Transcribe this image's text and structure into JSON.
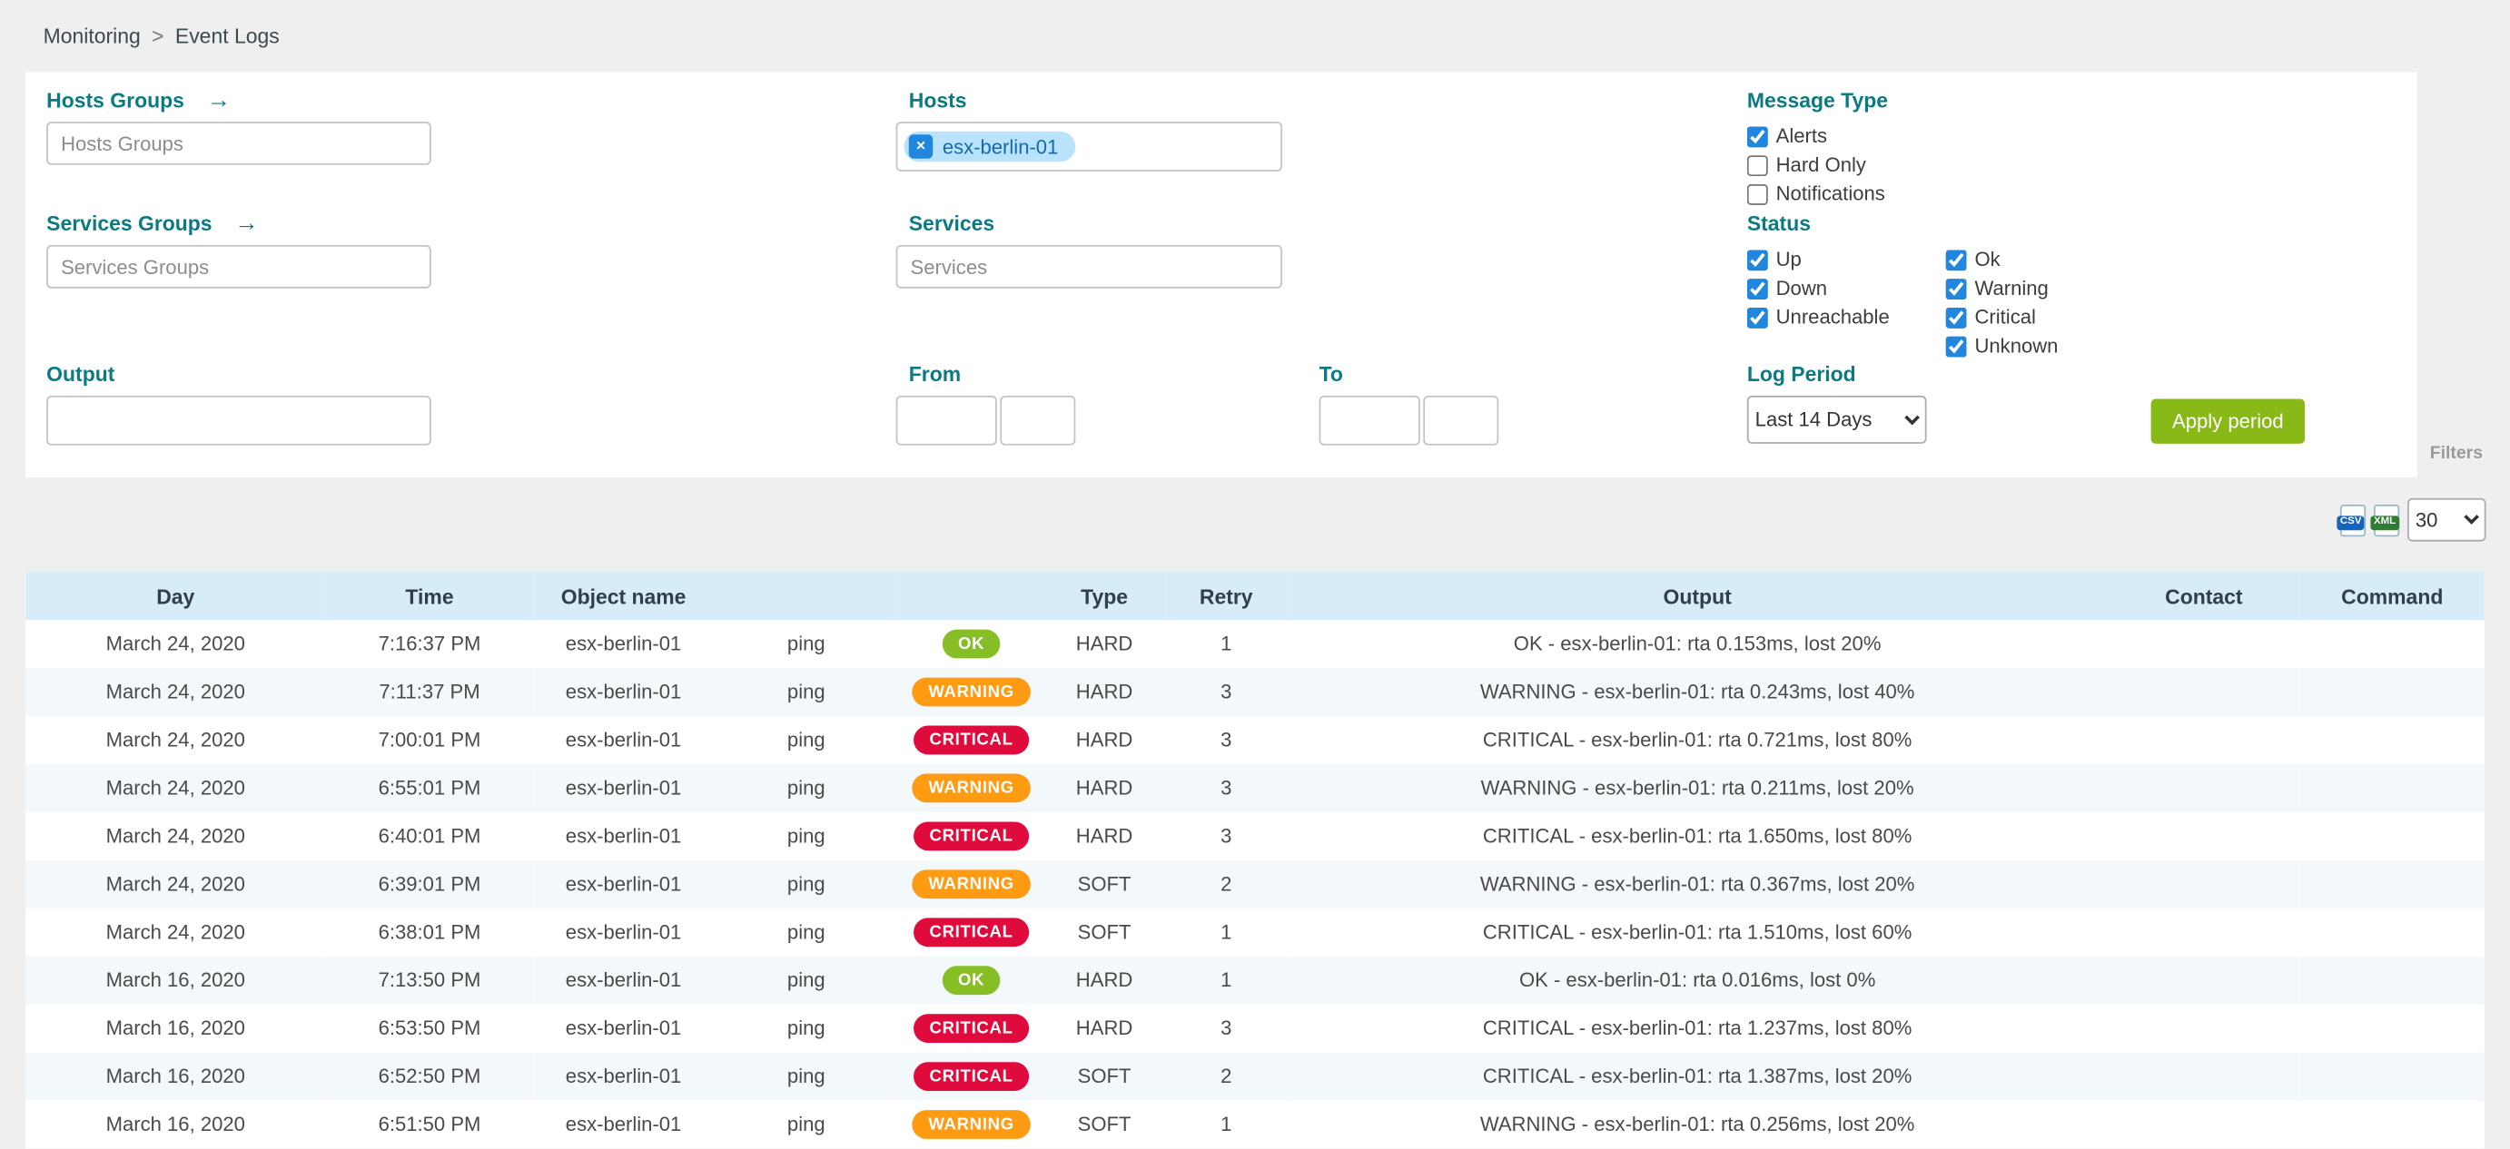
{
  "breadcrumb": {
    "items": [
      "Monitoring",
      "Event Logs"
    ],
    "separator": ">"
  },
  "filters": {
    "hosts_groups": {
      "label": "Hosts Groups",
      "placeholder": "Hosts Groups"
    },
    "hosts": {
      "label": "Hosts",
      "chip": "esx-berlin-01",
      "remove_icon": "×"
    },
    "services_groups": {
      "label": "Services Groups",
      "placeholder": "Services Groups"
    },
    "services": {
      "label": "Services",
      "placeholder": "Services"
    },
    "output": {
      "label": "Output",
      "value": ""
    },
    "from": {
      "label": "From",
      "date_value": "",
      "time_value": ""
    },
    "to": {
      "label": "To",
      "date_value": "",
      "time_value": ""
    },
    "message_type": {
      "label": "Message Type",
      "options": [
        {
          "label": "Alerts",
          "checked": true
        },
        {
          "label": "Hard Only",
          "checked": false
        },
        {
          "label": "Notifications",
          "checked": false
        }
      ]
    },
    "status": {
      "label": "Status",
      "columns": [
        [
          {
            "label": "Up",
            "checked": true
          },
          {
            "label": "Down",
            "checked": true
          },
          {
            "label": "Unreachable",
            "checked": true
          }
        ],
        [
          {
            "label": "Ok",
            "checked": true
          },
          {
            "label": "Warning",
            "checked": true
          },
          {
            "label": "Critical",
            "checked": true
          },
          {
            "label": "Unknown",
            "checked": true
          }
        ]
      ]
    },
    "log_period": {
      "label": "Log Period",
      "value": "Last 14 Days"
    },
    "apply_button_label": "Apply period",
    "toggle_label": "Filters",
    "arrow_icon": "→"
  },
  "toolbar": {
    "csv_label": "CSV",
    "xml_label": "XML",
    "page_size": "30"
  },
  "table": {
    "headers": [
      "Day",
      "Time",
      "Object name",
      "",
      "",
      "Type",
      "Retry",
      "Output",
      "Contact",
      "Command"
    ],
    "rows": [
      {
        "day": "March 24, 2020",
        "time": "7:16:37 PM",
        "object": "esx-berlin-01",
        "service": "ping",
        "status": "OK",
        "type": "HARD",
        "retry": "1",
        "output": "OK - esx-berlin-01: rta 0.153ms, lost 20%",
        "contact": "",
        "command": ""
      },
      {
        "day": "March 24, 2020",
        "time": "7:11:37 PM",
        "object": "esx-berlin-01",
        "service": "ping",
        "status": "WARNING",
        "type": "HARD",
        "retry": "3",
        "output": "WARNING - esx-berlin-01: rta 0.243ms, lost 40%",
        "contact": "",
        "command": ""
      },
      {
        "day": "March 24, 2020",
        "time": "7:00:01 PM",
        "object": "esx-berlin-01",
        "service": "ping",
        "status": "CRITICAL",
        "type": "HARD",
        "retry": "3",
        "output": "CRITICAL - esx-berlin-01: rta 0.721ms, lost 80%",
        "contact": "",
        "command": ""
      },
      {
        "day": "March 24, 2020",
        "time": "6:55:01 PM",
        "object": "esx-berlin-01",
        "service": "ping",
        "status": "WARNING",
        "type": "HARD",
        "retry": "3",
        "output": "WARNING - esx-berlin-01: rta 0.211ms, lost 20%",
        "contact": "",
        "command": ""
      },
      {
        "day": "March 24, 2020",
        "time": "6:40:01 PM",
        "object": "esx-berlin-01",
        "service": "ping",
        "status": "CRITICAL",
        "type": "HARD",
        "retry": "3",
        "output": "CRITICAL - esx-berlin-01: rta 1.650ms, lost 80%",
        "contact": "",
        "command": ""
      },
      {
        "day": "March 24, 2020",
        "time": "6:39:01 PM",
        "object": "esx-berlin-01",
        "service": "ping",
        "status": "WARNING",
        "type": "SOFT",
        "retry": "2",
        "output": "WARNING - esx-berlin-01: rta 0.367ms, lost 20%",
        "contact": "",
        "command": ""
      },
      {
        "day": "March 24, 2020",
        "time": "6:38:01 PM",
        "object": "esx-berlin-01",
        "service": "ping",
        "status": "CRITICAL",
        "type": "SOFT",
        "retry": "1",
        "output": "CRITICAL - esx-berlin-01: rta 1.510ms, lost 60%",
        "contact": "",
        "command": ""
      },
      {
        "day": "March 16, 2020",
        "time": "7:13:50 PM",
        "object": "esx-berlin-01",
        "service": "ping",
        "status": "OK",
        "type": "HARD",
        "retry": "1",
        "output": "OK - esx-berlin-01: rta 0.016ms, lost 0%",
        "contact": "",
        "command": ""
      },
      {
        "day": "March 16, 2020",
        "time": "6:53:50 PM",
        "object": "esx-berlin-01",
        "service": "ping",
        "status": "CRITICAL",
        "type": "HARD",
        "retry": "3",
        "output": "CRITICAL - esx-berlin-01: rta 1.237ms, lost 80%",
        "contact": "",
        "command": ""
      },
      {
        "day": "March 16, 2020",
        "time": "6:52:50 PM",
        "object": "esx-berlin-01",
        "service": "ping",
        "status": "CRITICAL",
        "type": "SOFT",
        "retry": "2",
        "output": "CRITICAL - esx-berlin-01: rta 1.387ms, lost 20%",
        "contact": "",
        "command": ""
      },
      {
        "day": "March 16, 2020",
        "time": "6:51:50 PM",
        "object": "esx-berlin-01",
        "service": "ping",
        "status": "WARNING",
        "type": "SOFT",
        "retry": "1",
        "output": "WARNING - esx-berlin-01: rta 0.256ms, lost 20%",
        "contact": "",
        "command": ""
      }
    ]
  },
  "colors": {
    "label_teal": "#0b7a82",
    "accent_blue": "#2186de",
    "apply_green": "#88b917",
    "ok_green": "#87bd25",
    "warning_orange": "#ff9a13",
    "critical_red": "#e00b3d",
    "header_blue": "#d6edf9"
  }
}
